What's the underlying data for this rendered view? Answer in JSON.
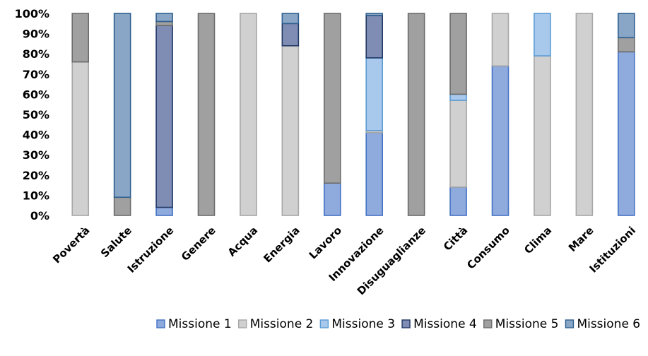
{
  "chart_data": {
    "type": "bar",
    "stacked": "percent",
    "categories": [
      "Povertà",
      "Salute",
      "Istruzione",
      "Genere",
      "Acqua",
      "Energia",
      "Lavoro",
      "Innovazione",
      "Disuguaglianze",
      "Città",
      "Consumo",
      "Clima",
      "Mare",
      "Istituzioni"
    ],
    "series": [
      {
        "name": "Missione 1",
        "color": "#8FAADC",
        "stroke": "#4472C4",
        "values": [
          0,
          0,
          4,
          0,
          0,
          0,
          16,
          41,
          0,
          14,
          74,
          0,
          0,
          81
        ]
      },
      {
        "name": "Missione 2",
        "color": "#D0D0D0",
        "stroke": "#A6A6A6",
        "values": [
          76,
          0,
          0,
          0,
          100,
          84,
          0,
          1,
          0,
          43,
          26,
          79,
          100,
          0
        ]
      },
      {
        "name": "Missione 3",
        "color": "#A9C9EC",
        "stroke": "#5B9BD5",
        "values": [
          0,
          0,
          0,
          0,
          0,
          0,
          0,
          36,
          0,
          3,
          0,
          21,
          0,
          0
        ]
      },
      {
        "name": "Missione 4",
        "color": "#7F8DB4",
        "stroke": "#203864",
        "values": [
          0,
          0,
          90,
          0,
          0,
          11,
          0,
          21,
          0,
          0,
          0,
          0,
          0,
          0
        ]
      },
      {
        "name": "Missione 5",
        "color": "#A0A0A0",
        "stroke": "#6B6B6B",
        "values": [
          24,
          9,
          2,
          100,
          0,
          0,
          84,
          0,
          100,
          40,
          0,
          0,
          0,
          7
        ]
      },
      {
        "name": "Missione 6",
        "color": "#8AA6C6",
        "stroke": "#2E5F8F",
        "values": [
          0,
          91,
          4,
          0,
          0,
          5,
          0,
          1,
          0,
          0,
          0,
          0,
          0,
          12
        ]
      }
    ],
    "ylim": [
      0,
      100
    ],
    "yticks": [
      "0%",
      "10%",
      "20%",
      "30%",
      "40%",
      "50%",
      "60%",
      "70%",
      "80%",
      "90%",
      "100%"
    ],
    "grid": false,
    "legend_position": "bottom",
    "title": "",
    "xlabel": "",
    "ylabel": ""
  }
}
